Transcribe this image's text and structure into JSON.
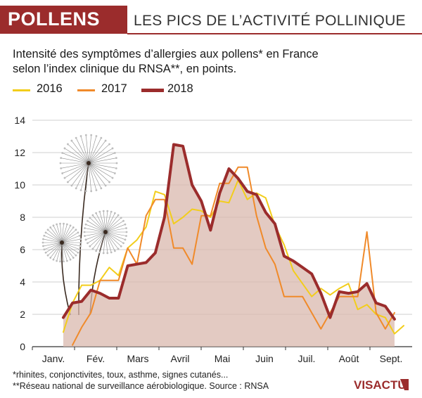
{
  "header": {
    "tag": "POLLENS",
    "title": "LES PICS DE L’ACTIVITÉ POLLINIQUE"
  },
  "subtitle_line1": "Intensité des symptômes d’allergies aux pollens* en France",
  "subtitle_line2": "selon l’index clinique du RNSA**, en points.",
  "footnotes": [
    "*rhinites, conjonctivites, toux, asthme, signes cutanés...",
    "**Réseau national de surveillance aérobiologique. Source : RNSA"
  ],
  "logo_text": "VISACTU",
  "colors": {
    "brand": "#9b2c2c",
    "area_fill": "#d9b8ad"
  },
  "chart_data": {
    "type": "line",
    "title": "",
    "xlabel": "",
    "ylabel": "",
    "ylim": [
      0,
      14
    ],
    "yticks": [
      0,
      2,
      4,
      6,
      8,
      10,
      12,
      14
    ],
    "categories": [
      "Janv.",
      "Fév.",
      "Mars",
      "Avril",
      "Mai",
      "Juin",
      "Juil.",
      "Août",
      "Sept."
    ],
    "grid": true,
    "legend_position": "top-left",
    "x": [
      1,
      2,
      3,
      4,
      5,
      6,
      7,
      8,
      9,
      10,
      11,
      12,
      13,
      14,
      15,
      16,
      17,
      18,
      19,
      20,
      21,
      22,
      23,
      24,
      25,
      26,
      27,
      28,
      29,
      30,
      31,
      32,
      33,
      34,
      35,
      36,
      37,
      38
    ],
    "series": [
      {
        "name": "2016",
        "color": "#f2cd1b",
        "values": [
          0.9,
          2.7,
          3.8,
          3.8,
          4.1,
          4.9,
          4.4,
          6.1,
          6.6,
          7.4,
          9.6,
          9.4,
          7.6,
          8.0,
          8.5,
          8.4,
          8.0,
          9.0,
          8.9,
          10.3,
          9.1,
          9.5,
          9.2,
          7.5,
          6.3,
          4.7,
          3.9,
          3.1,
          3.6,
          3.2,
          3.6,
          3.9,
          2.3,
          2.6,
          2.0,
          1.8,
          0.8,
          1.3
        ]
      },
      {
        "name": "2017",
        "color": "#f08a2a",
        "values": [
          null,
          0.1,
          1.2,
          2.1,
          4.1,
          4.1,
          4.1,
          6.1,
          5.1,
          8.1,
          9.1,
          9.1,
          6.1,
          6.1,
          5.1,
          8.1,
          8.1,
          10.1,
          10.1,
          11.1,
          11.1,
          8.1,
          6.1,
          5.1,
          3.1,
          3.1,
          3.1,
          2.1,
          1.1,
          2.1,
          3.1,
          3.1,
          3.1,
          7.1,
          2.1,
          1.1,
          2.1,
          null
        ]
      },
      {
        "name": "2018",
        "color": "#9b2c2c",
        "filled": true,
        "values": [
          1.8,
          2.7,
          2.8,
          3.5,
          3.3,
          3.0,
          3.0,
          5.0,
          5.1,
          5.2,
          5.8,
          8.0,
          12.5,
          12.4,
          10.0,
          9.0,
          7.2,
          9.5,
          11.0,
          10.4,
          9.6,
          9.4,
          8.3,
          7.6,
          5.6,
          5.3,
          4.9,
          4.5,
          3.3,
          1.8,
          3.4,
          3.3,
          3.4,
          3.9,
          2.7,
          2.5,
          1.7,
          null
        ]
      }
    ]
  }
}
